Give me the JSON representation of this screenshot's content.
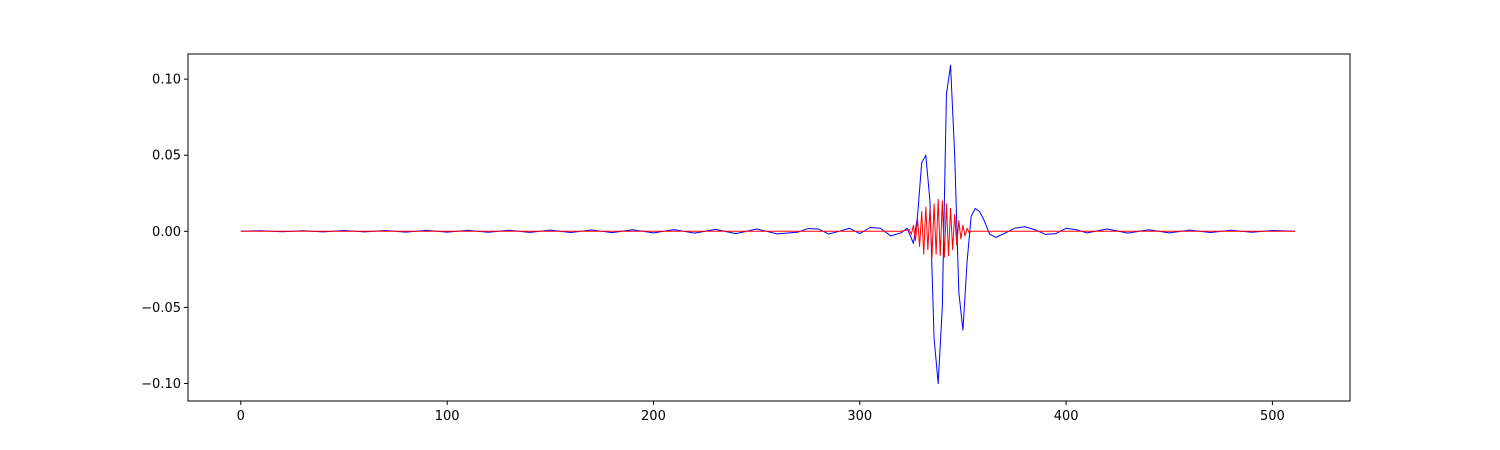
{
  "chart_data": {
    "type": "line",
    "title": "",
    "xlabel": "",
    "ylabel": "",
    "xlim": [
      -25.6,
      537.6
    ],
    "ylim": [
      -0.1115,
      0.1165
    ],
    "xticks": [
      0,
      100,
      200,
      300,
      400,
      500
    ],
    "yticks": [
      -0.1,
      -0.05,
      0.0,
      0.05,
      0.1
    ],
    "xtick_labels": [
      "0",
      "100",
      "200",
      "300",
      "400",
      "500"
    ],
    "ytick_labels": [
      "−0.10",
      "−0.05",
      "0.00",
      "0.05",
      "0.10"
    ],
    "grid": false,
    "legend": "none",
    "series": [
      {
        "color": "#0000ff",
        "x": [
          0,
          10,
          20,
          30,
          40,
          50,
          60,
          70,
          80,
          90,
          100,
          110,
          120,
          130,
          140,
          150,
          160,
          170,
          180,
          190,
          200,
          210,
          220,
          230,
          240,
          250,
          260,
          270,
          275,
          280,
          285,
          290,
          295,
          300,
          305,
          310,
          315,
          320,
          323,
          326,
          328,
          330,
          332,
          334,
          336,
          338,
          340,
          342,
          344,
          346,
          348,
          350,
          352,
          354,
          356,
          358,
          360,
          363,
          366,
          370,
          375,
          380,
          385,
          390,
          395,
          400,
          405,
          410,
          420,
          430,
          440,
          450,
          460,
          470,
          480,
          490,
          500,
          511
        ],
        "values": [
          0.0,
          0.0004,
          -0.0003,
          0.0004,
          -0.0004,
          0.0005,
          -0.0004,
          0.0005,
          -0.0005,
          0.0006,
          -0.0005,
          0.0006,
          -0.0006,
          0.0007,
          -0.0007,
          0.0008,
          -0.0008,
          0.0009,
          -0.0009,
          0.001,
          -0.001,
          0.0011,
          -0.0012,
          0.0013,
          -0.0015,
          0.0015,
          -0.0017,
          -0.0005,
          0.0018,
          0.0015,
          -0.0018,
          0.0,
          0.002,
          -0.0015,
          0.0025,
          0.002,
          -0.003,
          -0.001,
          0.002,
          -0.008,
          0.01,
          0.045,
          0.05,
          0.02,
          -0.07,
          -0.1,
          -0.05,
          0.09,
          0.109,
          0.05,
          -0.04,
          -0.065,
          -0.02,
          0.01,
          0.015,
          0.013,
          0.008,
          -0.002,
          -0.004,
          -0.0015,
          0.002,
          0.003,
          0.001,
          -0.002,
          -0.0015,
          0.002,
          0.001,
          -0.001,
          0.0015,
          -0.0012,
          0.001,
          -0.001,
          0.0008,
          -0.0008,
          0.0007,
          -0.0006,
          0.0005,
          0.0
        ]
      },
      {
        "color": "#ff0000",
        "x": [
          0,
          100,
          200,
          300,
          320,
          324,
          325,
          326,
          327,
          328,
          329,
          330,
          331,
          332,
          333,
          334,
          335,
          336,
          337,
          338,
          339,
          340,
          341,
          342,
          343,
          344,
          345,
          346,
          347,
          348,
          349,
          350,
          351,
          352,
          353,
          354,
          355,
          356,
          360,
          400,
          500,
          511
        ],
        "values": [
          0.0,
          0.0,
          0.0,
          0.0,
          0.0,
          0.001,
          -0.002,
          0.004,
          -0.006,
          0.008,
          -0.01,
          0.013,
          -0.015,
          0.016,
          -0.012,
          0.015,
          -0.017,
          0.018,
          -0.015,
          0.021,
          -0.016,
          0.02,
          -0.017,
          0.018,
          -0.016,
          0.015,
          -0.012,
          0.011,
          -0.009,
          0.007,
          -0.005,
          0.004,
          -0.003,
          0.002,
          -0.001,
          0.0,
          0.0,
          0.0,
          0.0,
          0.0,
          0.0,
          0.0
        ]
      }
    ]
  }
}
